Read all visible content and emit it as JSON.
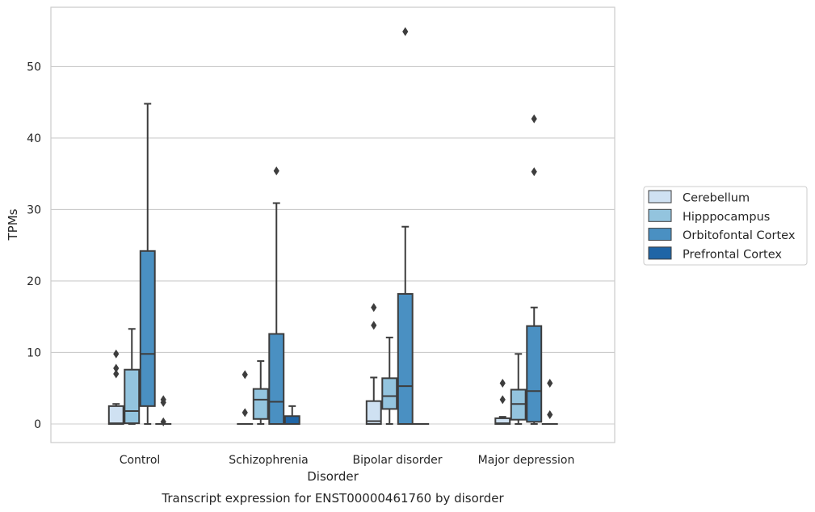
{
  "chart_data": {
    "type": "box",
    "title": "",
    "caption": "Transcript expression for ENST00000461760 by disorder",
    "xlabel": "Disorder",
    "ylabel": "TPMs",
    "ylim": [
      -2.6,
      58.3
    ],
    "yticks": [
      0,
      10,
      20,
      30,
      40,
      50
    ],
    "grid": "horizontal",
    "legend_position": "right",
    "categories": [
      "Control",
      "Schizophrenia",
      "Bipolar disorder",
      "Major depression"
    ],
    "series": [
      {
        "name": "Cerebellum",
        "color": "#cfe1f2",
        "boxes": [
          {
            "whisker_low": 0,
            "q1": 0,
            "median": 0.1,
            "q3": 2.5,
            "whisker_high": 2.8,
            "outliers": [
              7.0,
              7.8,
              9.8
            ]
          },
          {
            "whisker_low": 0,
            "q1": 0,
            "median": 0,
            "q3": 0,
            "whisker_high": 0,
            "outliers": [
              1.6,
              6.9
            ]
          },
          {
            "whisker_low": 0,
            "q1": 0,
            "median": 0.4,
            "q3": 3.2,
            "whisker_high": 6.5,
            "outliers": [
              13.8,
              16.3
            ]
          },
          {
            "whisker_low": 0,
            "q1": 0,
            "median": 0.1,
            "q3": 0.8,
            "whisker_high": 1.0,
            "outliers": [
              3.4,
              5.7
            ]
          }
        ]
      },
      {
        "name": "Hipppocampus",
        "color": "#93c4de",
        "boxes": [
          {
            "whisker_low": 0,
            "q1": 0.1,
            "median": 1.8,
            "q3": 7.6,
            "whisker_high": 13.3,
            "outliers": []
          },
          {
            "whisker_low": 0,
            "q1": 0.7,
            "median": 3.4,
            "q3": 4.9,
            "whisker_high": 8.8,
            "outliers": []
          },
          {
            "whisker_low": 0,
            "q1": 2.1,
            "median": 3.9,
            "q3": 6.4,
            "whisker_high": 12.1,
            "outliers": []
          },
          {
            "whisker_low": 0,
            "q1": 0.6,
            "median": 2.8,
            "q3": 4.8,
            "whisker_high": 9.8,
            "outliers": []
          }
        ]
      },
      {
        "name": "Orbitofontal Cortex",
        "color": "#4a90c2",
        "boxes": [
          {
            "whisker_low": 0,
            "q1": 2.5,
            "median": 9.8,
            "q3": 24.2,
            "whisker_high": 44.8,
            "outliers": []
          },
          {
            "whisker_low": 0,
            "q1": 0,
            "median": 3.1,
            "q3": 12.6,
            "whisker_high": 30.9,
            "outliers": [
              35.4
            ]
          },
          {
            "whisker_low": 0,
            "q1": 0,
            "median": 5.3,
            "q3": 18.2,
            "whisker_high": 27.6,
            "outliers": [
              54.9
            ]
          },
          {
            "whisker_low": 0,
            "q1": 0.3,
            "median": 4.6,
            "q3": 13.7,
            "whisker_high": 16.3,
            "outliers": [
              35.3,
              42.7
            ]
          }
        ]
      },
      {
        "name": "Prefrontal Cortex",
        "color": "#1f65a6",
        "boxes": [
          {
            "whisker_low": 0,
            "q1": 0,
            "median": 0,
            "q3": 0,
            "whisker_high": 0,
            "outliers": [
              0.3,
              3.0,
              3.4
            ]
          },
          {
            "whisker_low": 0,
            "q1": 0,
            "median": 0,
            "q3": 1.1,
            "whisker_high": 2.5,
            "outliers": []
          },
          {
            "whisker_low": 0,
            "q1": 0,
            "median": 0,
            "q3": 0,
            "whisker_high": 0,
            "outliers": []
          },
          {
            "whisker_low": 0,
            "q1": 0,
            "median": 0,
            "q3": 0,
            "whisker_high": 0,
            "outliers": [
              1.3,
              5.7
            ]
          }
        ]
      }
    ]
  }
}
